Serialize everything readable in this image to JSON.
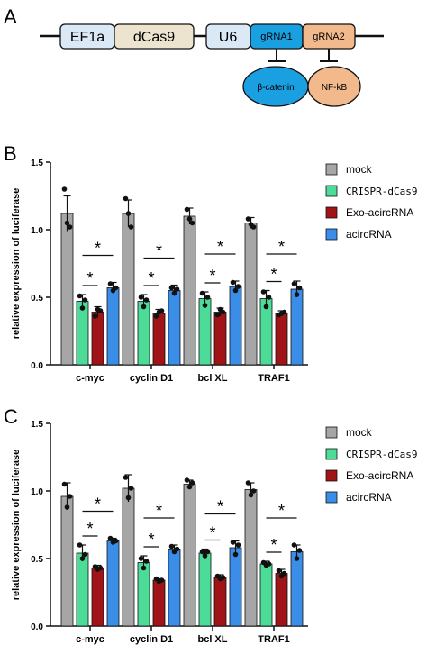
{
  "panel_labels": {
    "a": "A",
    "b": "B",
    "c": "C"
  },
  "construct": {
    "elements": [
      {
        "label": "EF1a",
        "fill": "#dbe8f5"
      },
      {
        "label": "dCas9",
        "fill": "#ede4d0"
      },
      {
        "label": "U6",
        "fill": "#dbe8f5"
      },
      {
        "label": "gRNA1",
        "fill": "#1a9fe0"
      },
      {
        "label": "gRNA2",
        "fill": "#f2b98c"
      }
    ],
    "targets": [
      {
        "label": "β-catenin",
        "fill": "#1a9fe0"
      },
      {
        "label": "NF-kB",
        "fill": "#f2b98c"
      }
    ]
  },
  "chart_data": [
    {
      "type": "bar",
      "panel": "B",
      "ylabel": "relative expression of luciferase",
      "xlabel": "",
      "ylim": [
        0,
        1.5
      ],
      "yticks": [
        "0.0",
        "0.5",
        "1.0",
        "1.5"
      ],
      "categories": [
        "c-myc",
        "cyclin D1",
        "bcl XL",
        "TRAF1"
      ],
      "legend_position": "right",
      "series": [
        {
          "name": "mock",
          "color": "#a6a6a6",
          "values": [
            1.12,
            1.12,
            1.1,
            1.05
          ],
          "errors": [
            0.13,
            0.1,
            0.06,
            0.04
          ],
          "points": [
            [
              1.3,
              1.05,
              1.02
            ],
            [
              1.23,
              1.12,
              1.02
            ],
            [
              1.15,
              1.08,
              1.05
            ],
            [
              1.08,
              1.04,
              1.02
            ]
          ]
        },
        {
          "name": "CRISPR-dCas9",
          "color": "#4ddb98",
          "values": [
            0.47,
            0.47,
            0.49,
            0.49
          ],
          "errors": [
            0.05,
            0.05,
            0.05,
            0.06
          ],
          "points": [
            [
              0.51,
              0.42,
              0.48
            ],
            [
              0.5,
              0.43,
              0.48
            ],
            [
              0.53,
              0.44,
              0.5
            ],
            [
              0.54,
              0.43,
              0.5
            ]
          ]
        },
        {
          "name": "Exo-acircRNA",
          "color": "#a01418",
          "values": [
            0.39,
            0.38,
            0.39,
            0.38
          ],
          "errors": [
            0.04,
            0.03,
            0.03,
            0.02
          ],
          "points": [
            [
              0.36,
              0.41,
              0.4
            ],
            [
              0.36,
              0.39,
              0.4
            ],
            [
              0.37,
              0.41,
              0.39
            ],
            [
              0.37,
              0.38,
              0.39
            ]
          ]
        },
        {
          "name": "acircRNA",
          "color": "#3a8ee8",
          "values": [
            0.57,
            0.55,
            0.58,
            0.56
          ],
          "errors": [
            0.04,
            0.04,
            0.04,
            0.06
          ],
          "points": [
            [
              0.6,
              0.55,
              0.57
            ],
            [
              0.57,
              0.53,
              0.56
            ],
            [
              0.61,
              0.55,
              0.58
            ],
            [
              0.6,
              0.52,
              0.57
            ]
          ]
        }
      ],
      "annotations": [
        {
          "from_series": "CRISPR-dCas9",
          "to_series": "Exo-acircRNA",
          "text": "*"
        },
        {
          "from_series": "CRISPR-dCas9",
          "to_series": "acircRNA",
          "text": "*"
        }
      ]
    },
    {
      "type": "bar",
      "panel": "C",
      "ylabel": "relative expression of luciferase",
      "xlabel": "",
      "ylim": [
        0,
        1.5
      ],
      "yticks": [
        "0.0",
        "0.5",
        "1.0",
        "1.5"
      ],
      "categories": [
        "c-myc",
        "cyclin D1",
        "bcl XL",
        "TRAF1"
      ],
      "legend_position": "right",
      "series": [
        {
          "name": "mock",
          "color": "#a6a6a6",
          "values": [
            0.96,
            1.02,
            1.05,
            1.01
          ],
          "errors": [
            0.1,
            0.1,
            0.03,
            0.05
          ],
          "points": [
            [
              1.05,
              0.88,
              0.96
            ],
            [
              1.1,
              0.95,
              1.02
            ],
            [
              1.08,
              1.03,
              1.06
            ],
            [
              1.06,
              0.97,
              1.0
            ]
          ]
        },
        {
          "name": "CRISPR-dCas9",
          "color": "#4ddb98",
          "values": [
            0.54,
            0.47,
            0.54,
            0.46
          ],
          "errors": [
            0.06,
            0.05,
            0.03,
            0.02
          ],
          "points": [
            [
              0.6,
              0.5,
              0.53
            ],
            [
              0.5,
              0.43,
              0.48
            ],
            [
              0.55,
              0.52,
              0.55
            ],
            [
              0.47,
              0.45,
              0.46
            ]
          ]
        },
        {
          "name": "Exo-acircRNA",
          "color": "#a01418",
          "values": [
            0.43,
            0.34,
            0.36,
            0.39
          ],
          "errors": [
            0.02,
            0.01,
            0.02,
            0.03
          ],
          "points": [
            [
              0.44,
              0.42,
              0.43
            ],
            [
              0.35,
              0.33,
              0.34
            ],
            [
              0.37,
              0.35,
              0.36
            ],
            [
              0.41,
              0.37,
              0.39
            ]
          ]
        },
        {
          "name": "acircRNA",
          "color": "#3a8ee8",
          "values": [
            0.63,
            0.57,
            0.58,
            0.55
          ],
          "errors": [
            0.02,
            0.03,
            0.05,
            0.05
          ],
          "points": [
            [
              0.65,
              0.62,
              0.63
            ],
            [
              0.59,
              0.55,
              0.57
            ],
            [
              0.62,
              0.53,
              0.6
            ],
            [
              0.6,
              0.5,
              0.56
            ]
          ]
        }
      ],
      "annotations": [
        {
          "from_series": "CRISPR-dCas9",
          "to_series": "Exo-acircRNA",
          "text": "*"
        },
        {
          "from_series": "CRISPR-dCas9",
          "to_series": "acircRNA",
          "text": "*"
        }
      ]
    }
  ]
}
